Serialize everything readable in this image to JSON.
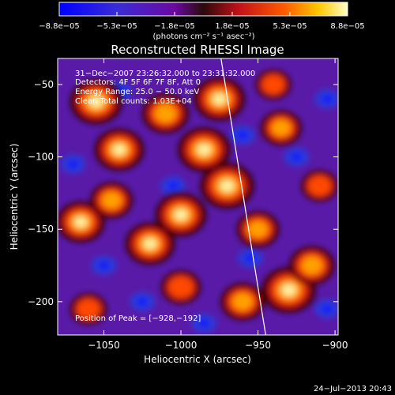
{
  "chart_data": {
    "type": "heatmap",
    "title": "Reconstructed RHESSI Image",
    "xlabel": "Heliocentric X (arcsec)",
    "ylabel": "Heliocentric Y (arcsec)",
    "xlim": [
      -1080,
      -898
    ],
    "ylim": [
      -223,
      -32
    ],
    "xticks": [
      -1050,
      -1000,
      -950,
      -900
    ],
    "xtick_labels": [
      "−1050",
      "−1000",
      "−950",
      "−900"
    ],
    "yticks": [
      -50,
      -100,
      -150,
      -200
    ],
    "ytick_labels": [
      "−50",
      "−100",
      "−150",
      "−200"
    ],
    "colorbar": {
      "min": -8.8e-05,
      "max": 8.8e-05,
      "tick_labels": [
        "−8.8e−05",
        "−5.3e−05",
        "−1.8e−05",
        "1.8e−05",
        "5.3e−05",
        "8.8e−05"
      ],
      "unit_label": "(photons cm⁻² s⁻¹ asec⁻²)"
    },
    "annotations": [
      "31−Dec−2007 23:26:32.000 to 23:31:32.000",
      "Detectors: 4F 5F 6F 7F 8F, Att 0",
      "Energy Range: 25.0 − 50.0 keV",
      "Clean     Total counts: 1.03E+04"
    ],
    "peak_label": "Position of Peak = [−928,−192]",
    "peak": [
      -928,
      -192
    ],
    "limb_line": [
      [
        -974,
        -32
      ],
      [
        -945,
        -223
      ]
    ],
    "hotspots": [
      {
        "x": -1055,
        "y": -62,
        "v": 0.95
      },
      {
        "x": -1040,
        "y": -95,
        "v": 0.85
      },
      {
        "x": -1010,
        "y": -70,
        "v": 0.75
      },
      {
        "x": -985,
        "y": -95,
        "v": 0.95
      },
      {
        "x": -975,
        "y": -60,
        "v": 0.9
      },
      {
        "x": -970,
        "y": -120,
        "v": 1.0
      },
      {
        "x": -1000,
        "y": -140,
        "v": 0.9
      },
      {
        "x": -1020,
        "y": -160,
        "v": 0.85
      },
      {
        "x": -1065,
        "y": -145,
        "v": 0.8
      },
      {
        "x": -1045,
        "y": -130,
        "v": 0.6
      },
      {
        "x": -950,
        "y": -150,
        "v": 0.6
      },
      {
        "x": -930,
        "y": -192,
        "v": 1.0
      },
      {
        "x": -915,
        "y": -175,
        "v": 0.7
      },
      {
        "x": -960,
        "y": -200,
        "v": 0.65
      },
      {
        "x": -1000,
        "y": -190,
        "v": 0.5
      },
      {
        "x": -1060,
        "y": -205,
        "v": 0.4
      },
      {
        "x": -935,
        "y": -80,
        "v": 0.55
      },
      {
        "x": -910,
        "y": -120,
        "v": 0.4
      },
      {
        "x": -940,
        "y": -50,
        "v": 0.35
      }
    ]
  },
  "footer": {
    "timestamp": "24−Jul−2013 20:43"
  }
}
